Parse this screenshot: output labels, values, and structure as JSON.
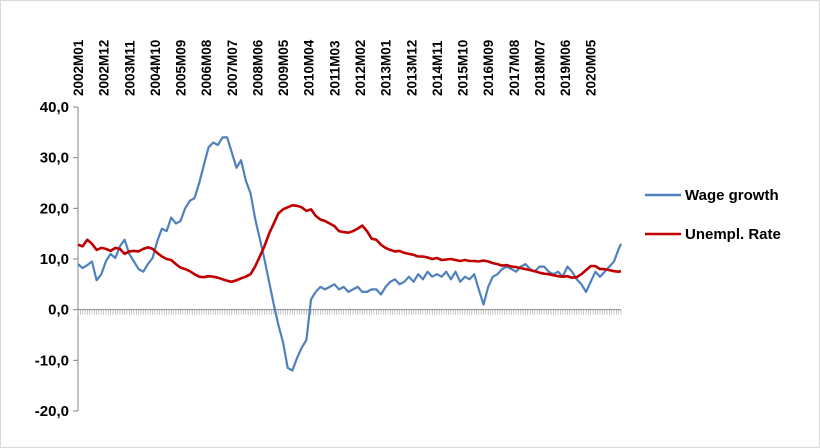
{
  "chart_data": {
    "type": "line",
    "y_axis": {
      "ylim": [
        -20,
        40
      ],
      "ticks": [
        -20,
        -10,
        0,
        10,
        20,
        30,
        40
      ],
      "tick_labels": [
        "-20,0",
        "-10,0",
        "0,0",
        "10,0",
        "20,0",
        "30,0",
        "40,0"
      ]
    },
    "x_axis": {
      "start": "2002M01",
      "end": "2021M06",
      "label_step_months": 11,
      "tick_labels": [
        "2002M01",
        "2002M12",
        "2003M11",
        "2004M10",
        "2005M09",
        "2006M08",
        "2007M07",
        "2008M06",
        "2009M05",
        "2010M04",
        "2011M03",
        "2012M02",
        "2013M01",
        "2013M12",
        "2014M11",
        "2015M10",
        "2016M09",
        "2017M08",
        "2018M07",
        "2019M06",
        "2020M05"
      ]
    },
    "grid": false,
    "legend_position": "right",
    "series": [
      {
        "name": "Wage growth",
        "color": "#4f81bd",
        "points": [
          [
            "2002M01",
            9.0
          ],
          [
            "2002M03",
            8.2
          ],
          [
            "2002M05",
            8.8
          ],
          [
            "2002M07",
            9.5
          ],
          [
            "2002M09",
            5.8
          ],
          [
            "2002M11",
            7.0
          ],
          [
            "2003M01",
            9.6
          ],
          [
            "2003M03",
            11.0
          ],
          [
            "2003M05",
            10.2
          ],
          [
            "2003M07",
            12.5
          ],
          [
            "2003M09",
            13.8
          ],
          [
            "2003M11",
            11.0
          ],
          [
            "2004M01",
            9.5
          ],
          [
            "2004M03",
            8.0
          ],
          [
            "2004M05",
            7.5
          ],
          [
            "2004M07",
            9.0
          ],
          [
            "2004M09",
            10.2
          ],
          [
            "2004M11",
            13.5
          ],
          [
            "2005M01",
            16.0
          ],
          [
            "2005M03",
            15.5
          ],
          [
            "2005M05",
            18.2
          ],
          [
            "2005M07",
            17.0
          ],
          [
            "2005M09",
            17.5
          ],
          [
            "2005M11",
            20.0
          ],
          [
            "2006M01",
            21.5
          ],
          [
            "2006M03",
            22.0
          ],
          [
            "2006M05",
            25.0
          ],
          [
            "2006M07",
            28.5
          ],
          [
            "2006M09",
            32.0
          ],
          [
            "2006M11",
            33.0
          ],
          [
            "2007M01",
            32.5
          ],
          [
            "2007M03",
            34.0
          ],
          [
            "2007M05",
            34.0
          ],
          [
            "2007M07",
            31.0
          ],
          [
            "2007M09",
            28.0
          ],
          [
            "2007M11",
            29.5
          ],
          [
            "2008M01",
            25.5
          ],
          [
            "2008M03",
            23.0
          ],
          [
            "2008M05",
            18.0
          ],
          [
            "2008M07",
            14.0
          ],
          [
            "2008M09",
            10.0
          ],
          [
            "2008M11",
            5.5
          ],
          [
            "2009M01",
            1.0
          ],
          [
            "2009M03",
            -3.0
          ],
          [
            "2009M05",
            -6.5
          ],
          [
            "2009M07",
            -11.5
          ],
          [
            "2009M09",
            -12.0
          ],
          [
            "2009M11",
            -9.5
          ],
          [
            "2010M01",
            -7.5
          ],
          [
            "2010M03",
            -6.0
          ],
          [
            "2010M05",
            2.0
          ],
          [
            "2010M07",
            3.5
          ],
          [
            "2010M09",
            4.5
          ],
          [
            "2010M11",
            4.0
          ],
          [
            "2011M01",
            4.5
          ],
          [
            "2011M03",
            5.0
          ],
          [
            "2011M05",
            4.0
          ],
          [
            "2011M07",
            4.5
          ],
          [
            "2011M09",
            3.5
          ],
          [
            "2011M11",
            4.0
          ],
          [
            "2012M01",
            4.5
          ],
          [
            "2012M03",
            3.5
          ],
          [
            "2012M05",
            3.5
          ],
          [
            "2012M07",
            4.0
          ],
          [
            "2012M09",
            4.0
          ],
          [
            "2012M11",
            3.0
          ],
          [
            "2013M01",
            4.5
          ],
          [
            "2013M03",
            5.5
          ],
          [
            "2013M05",
            6.0
          ],
          [
            "2013M07",
            5.0
          ],
          [
            "2013M09",
            5.5
          ],
          [
            "2013M11",
            6.5
          ],
          [
            "2014M01",
            5.5
          ],
          [
            "2014M03",
            7.0
          ],
          [
            "2014M05",
            6.0
          ],
          [
            "2014M07",
            7.5
          ],
          [
            "2014M09",
            6.5
          ],
          [
            "2014M11",
            7.0
          ],
          [
            "2015M01",
            6.5
          ],
          [
            "2015M03",
            7.5
          ],
          [
            "2015M05",
            6.0
          ],
          [
            "2015M07",
            7.5
          ],
          [
            "2015M09",
            5.5
          ],
          [
            "2015M11",
            6.5
          ],
          [
            "2016M01",
            6.0
          ],
          [
            "2016M03",
            7.0
          ],
          [
            "2016M05",
            4.0
          ],
          [
            "2016M07",
            1.0
          ],
          [
            "2016M09",
            4.5
          ],
          [
            "2016M11",
            6.5
          ],
          [
            "2017M01",
            7.0
          ],
          [
            "2017M03",
            8.0
          ],
          [
            "2017M05",
            8.5
          ],
          [
            "2017M07",
            8.0
          ],
          [
            "2017M09",
            7.5
          ],
          [
            "2017M11",
            8.5
          ],
          [
            "2018M01",
            9.0
          ],
          [
            "2018M03",
            8.0
          ],
          [
            "2018M05",
            7.5
          ],
          [
            "2018M07",
            8.5
          ],
          [
            "2018M09",
            8.5
          ],
          [
            "2018M11",
            7.5
          ],
          [
            "2019M01",
            7.0
          ],
          [
            "2019M03",
            7.5
          ],
          [
            "2019M05",
            6.5
          ],
          [
            "2019M07",
            8.5
          ],
          [
            "2019M09",
            7.5
          ],
          [
            "2019M11",
            6.0
          ],
          [
            "2020M01",
            5.0
          ],
          [
            "2020M03",
            3.5
          ],
          [
            "2020M05",
            5.5
          ],
          [
            "2020M07",
            7.5
          ],
          [
            "2020M09",
            6.5
          ],
          [
            "2020M11",
            7.5
          ],
          [
            "2021M01",
            8.5
          ],
          [
            "2021M03",
            9.5
          ],
          [
            "2021M05",
            12.0
          ],
          [
            "2021M06",
            13.0
          ]
        ]
      },
      {
        "name": "Unempl. Rate",
        "color": "#c00000",
        "points": [
          [
            "2002M01",
            12.8
          ],
          [
            "2002M03",
            12.5
          ],
          [
            "2002M05",
            13.8
          ],
          [
            "2002M07",
            13.0
          ],
          [
            "2002M09",
            11.8
          ],
          [
            "2002M11",
            12.2
          ],
          [
            "2003M01",
            12.0
          ],
          [
            "2003M03",
            11.6
          ],
          [
            "2003M05",
            12.2
          ],
          [
            "2003M07",
            12.0
          ],
          [
            "2003M09",
            11.0
          ],
          [
            "2003M11",
            11.5
          ],
          [
            "2004M01",
            11.6
          ],
          [
            "2004M03",
            11.5
          ],
          [
            "2004M05",
            12.0
          ],
          [
            "2004M07",
            12.3
          ],
          [
            "2004M09",
            12.0
          ],
          [
            "2004M11",
            11.2
          ],
          [
            "2005M01",
            10.5
          ],
          [
            "2005M03",
            10.0
          ],
          [
            "2005M05",
            9.8
          ],
          [
            "2005M07",
            9.0
          ],
          [
            "2005M09",
            8.3
          ],
          [
            "2005M11",
            8.0
          ],
          [
            "2006M01",
            7.6
          ],
          [
            "2006M03",
            7.0
          ],
          [
            "2006M05",
            6.5
          ],
          [
            "2006M07",
            6.4
          ],
          [
            "2006M09",
            6.6
          ],
          [
            "2006M11",
            6.5
          ],
          [
            "2007M01",
            6.3
          ],
          [
            "2007M03",
            6.0
          ],
          [
            "2007M05",
            5.7
          ],
          [
            "2007M07",
            5.5
          ],
          [
            "2007M09",
            5.8
          ],
          [
            "2007M11",
            6.2
          ],
          [
            "2008M01",
            6.5
          ],
          [
            "2008M03",
            7.0
          ],
          [
            "2008M05",
            8.5
          ],
          [
            "2008M07",
            10.5
          ],
          [
            "2008M09",
            12.5
          ],
          [
            "2008M11",
            15.0
          ],
          [
            "2009M01",
            17.0
          ],
          [
            "2009M03",
            19.0
          ],
          [
            "2009M05",
            19.8
          ],
          [
            "2009M07",
            20.2
          ],
          [
            "2009M09",
            20.6
          ],
          [
            "2009M11",
            20.5
          ],
          [
            "2010M01",
            20.2
          ],
          [
            "2010M03",
            19.5
          ],
          [
            "2010M05",
            19.8
          ],
          [
            "2010M07",
            18.5
          ],
          [
            "2010M09",
            17.8
          ],
          [
            "2010M11",
            17.5
          ],
          [
            "2011M01",
            17.0
          ],
          [
            "2011M03",
            16.5
          ],
          [
            "2011M05",
            15.5
          ],
          [
            "2011M07",
            15.3
          ],
          [
            "2011M09",
            15.2
          ],
          [
            "2011M11",
            15.5
          ],
          [
            "2012M01",
            16.0
          ],
          [
            "2012M03",
            16.6
          ],
          [
            "2012M05",
            15.5
          ],
          [
            "2012M07",
            14.0
          ],
          [
            "2012M09",
            13.8
          ],
          [
            "2012M11",
            12.8
          ],
          [
            "2013M01",
            12.2
          ],
          [
            "2013M03",
            11.8
          ],
          [
            "2013M05",
            11.5
          ],
          [
            "2013M07",
            11.6
          ],
          [
            "2013M09",
            11.2
          ],
          [
            "2013M11",
            11.0
          ],
          [
            "2014M01",
            10.8
          ],
          [
            "2014M03",
            10.5
          ],
          [
            "2014M05",
            10.5
          ],
          [
            "2014M07",
            10.3
          ],
          [
            "2014M09",
            10.0
          ],
          [
            "2014M11",
            10.2
          ],
          [
            "2015M01",
            9.8
          ],
          [
            "2015M03",
            9.9
          ],
          [
            "2015M05",
            10.0
          ],
          [
            "2015M07",
            9.8
          ],
          [
            "2015M09",
            9.6
          ],
          [
            "2015M11",
            9.8
          ],
          [
            "2016M01",
            9.6
          ],
          [
            "2016M03",
            9.6
          ],
          [
            "2016M05",
            9.5
          ],
          [
            "2016M07",
            9.7
          ],
          [
            "2016M09",
            9.5
          ],
          [
            "2016M11",
            9.2
          ],
          [
            "2017M01",
            9.0
          ],
          [
            "2017M03",
            8.7
          ],
          [
            "2017M05",
            8.8
          ],
          [
            "2017M07",
            8.5
          ],
          [
            "2017M09",
            8.4
          ],
          [
            "2017M11",
            8.2
          ],
          [
            "2018M01",
            8.0
          ],
          [
            "2018M03",
            7.8
          ],
          [
            "2018M05",
            7.6
          ],
          [
            "2018M07",
            7.3
          ],
          [
            "2018M09",
            7.1
          ],
          [
            "2018M11",
            7.0
          ],
          [
            "2019M01",
            6.8
          ],
          [
            "2019M03",
            6.6
          ],
          [
            "2019M05",
            6.5
          ],
          [
            "2019M07",
            6.6
          ],
          [
            "2019M09",
            6.3
          ],
          [
            "2019M11",
            6.4
          ],
          [
            "2020M01",
            7.0
          ],
          [
            "2020M03",
            7.8
          ],
          [
            "2020M05",
            8.6
          ],
          [
            "2020M07",
            8.6
          ],
          [
            "2020M09",
            8.0
          ],
          [
            "2020M11",
            8.0
          ],
          [
            "2021M01",
            7.8
          ],
          [
            "2021M03",
            7.6
          ],
          [
            "2021M05",
            7.5
          ],
          [
            "2021M06",
            7.6
          ]
        ]
      }
    ]
  }
}
